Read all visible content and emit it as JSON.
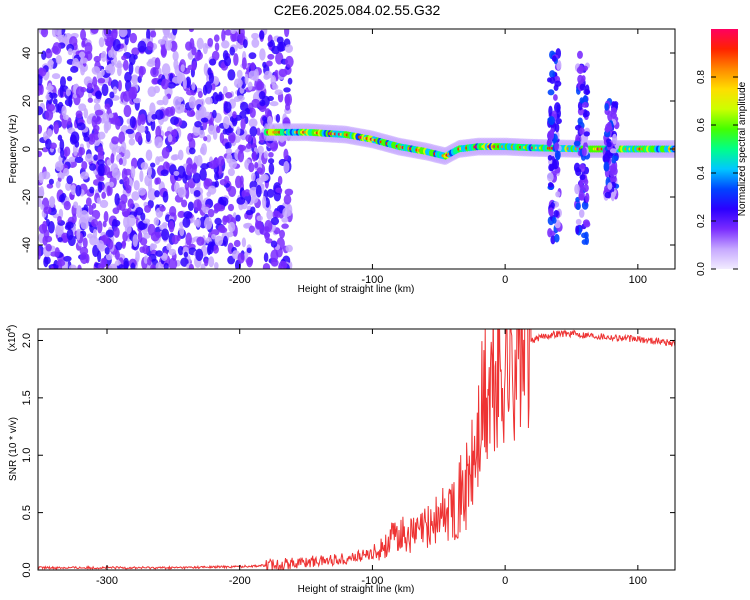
{
  "title": "C2E6.2025.084.02.55.G32",
  "chart_data": [
    {
      "type": "heatmap",
      "xlabel": "Height of straight line (km)",
      "ylabel": "Frequency (Hz)",
      "xlim": [
        -352,
        128
      ],
      "ylim": [
        -50,
        50
      ],
      "xticks": [
        -300,
        -200,
        -100,
        0,
        100
      ],
      "yticks": [
        -40,
        -20,
        0,
        20,
        40
      ],
      "colorbar": {
        "label": "Normalized spectral amplitude",
        "range": [
          0,
          1
        ],
        "ticks": [
          "0.0",
          "0.2",
          "0.4",
          "0.6",
          "0.8"
        ],
        "colormap": [
          "#f2ecff",
          "#c6a8ff",
          "#7a2cff",
          "#2b00ff",
          "#0044ff",
          "#00c8ff",
          "#00ff88",
          "#44ff00",
          "#ccff00",
          "#ffdd00",
          "#ff8800",
          "#ff2200",
          "#ff0060"
        ]
      },
      "noise_band": {
        "x_start": -352,
        "x_end": -162,
        "freq_range": [
          -50,
          50
        ]
      },
      "signal_track": [
        {
          "x": -180,
          "freq": 7
        },
        {
          "x": -150,
          "freq": 7
        },
        {
          "x": -120,
          "freq": 6
        },
        {
          "x": -100,
          "freq": 4
        },
        {
          "x": -80,
          "freq": 1
        },
        {
          "x": -60,
          "freq": -1
        },
        {
          "x": -45,
          "freq": -3
        },
        {
          "x": -35,
          "freq": 0
        },
        {
          "x": -20,
          "freq": 1
        },
        {
          "x": 0,
          "freq": 1
        },
        {
          "x": 20,
          "freq": 0.5
        },
        {
          "x": 60,
          "freq": 0
        },
        {
          "x": 128,
          "freq": 0
        }
      ],
      "bursts": [
        {
          "x": 37,
          "freq_range": [
            -40,
            40
          ]
        },
        {
          "x": 58,
          "freq_range": [
            -40,
            40
          ]
        },
        {
          "x": 80,
          "freq_range": [
            -20,
            20
          ]
        }
      ]
    },
    {
      "type": "line",
      "xlabel": "Height of straight line (km)",
      "ylabel": "SNR (10 * v/v)",
      "multiplier": "(x10",
      "multiplier_exp": "4",
      "xlim": [
        -352,
        128
      ],
      "ylim": [
        0,
        2.1
      ],
      "xticks": [
        -300,
        -200,
        -100,
        0,
        100
      ],
      "yticks": [
        "0.0",
        "0.5",
        "1.0",
        "1.5",
        "2.0"
      ],
      "color": "#ee3333",
      "series": [
        {
          "x": [
            -352,
            -300,
            -250,
            -200,
            -180,
            -160,
            -140,
            -120,
            -100,
            -90,
            -80,
            -70,
            -60,
            -50,
            -40,
            -30,
            -25,
            -20,
            -15,
            -10,
            -5,
            0,
            5,
            10,
            15,
            20,
            25,
            30,
            40,
            50,
            60,
            70,
            80,
            90,
            100,
            110,
            120,
            128
          ],
          "values": [
            0.02,
            0.02,
            0.02,
            0.03,
            0.04,
            0.06,
            0.08,
            0.1,
            0.14,
            0.22,
            0.32,
            0.3,
            0.36,
            0.45,
            0.55,
            0.7,
            0.85,
            1.15,
            1.45,
            1.55,
            1.7,
            1.8,
            1.85,
            1.92,
            1.97,
            2.0,
            2.02,
            2.04,
            2.06,
            2.06,
            2.05,
            2.04,
            2.03,
            2.02,
            2.01,
            2.0,
            1.99,
            1.97
          ]
        }
      ]
    }
  ]
}
